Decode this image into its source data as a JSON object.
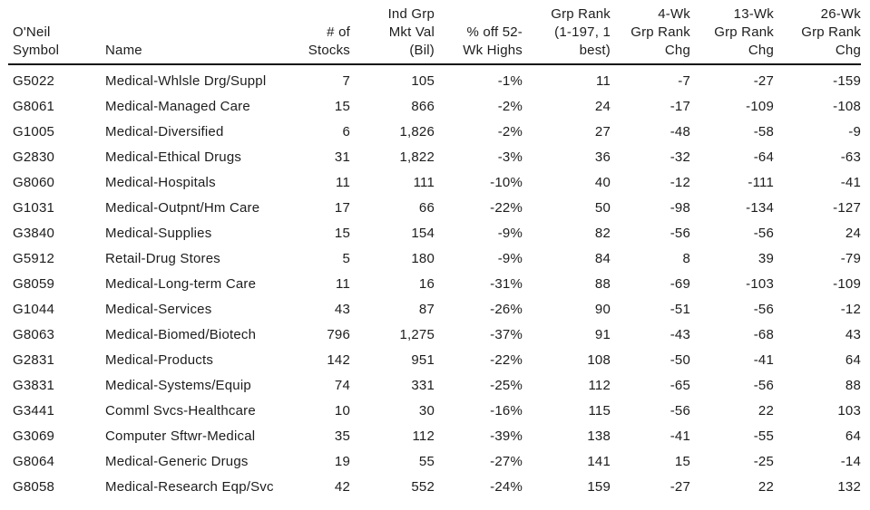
{
  "colors": {
    "background": "#ffffff",
    "text": "#1d1d1d",
    "header_rule": "#111111"
  },
  "table": {
    "headers": [
      {
        "id": "symbol",
        "label": [
          "O'Neil",
          "Symbol"
        ]
      },
      {
        "id": "name",
        "label": [
          "Name"
        ]
      },
      {
        "id": "stocks",
        "label": [
          "# of",
          "Stocks"
        ]
      },
      {
        "id": "mkt_val_bil",
        "label": [
          "Ind Grp",
          "Mkt Val",
          "(Bil)"
        ]
      },
      {
        "id": "pct_off_52wk",
        "label": [
          "% off 52-",
          "Wk Highs"
        ]
      },
      {
        "id": "grp_rank",
        "label": [
          "Grp Rank",
          "(1-197, 1",
          "best)"
        ]
      },
      {
        "id": "chg_4wk",
        "label": [
          "4-Wk",
          "Grp Rank",
          "Chg"
        ]
      },
      {
        "id": "chg_13wk",
        "label": [
          "13-Wk",
          "Grp Rank",
          "Chg"
        ]
      },
      {
        "id": "chg_26wk",
        "label": [
          "26-Wk",
          "Grp Rank",
          "Chg"
        ]
      }
    ],
    "rows": [
      {
        "symbol": "G5022",
        "name": "Medical-Whlsle Drg/Suppl",
        "stocks": "7",
        "mkt_val_bil": "105",
        "pct_off_52wk": "-1%",
        "grp_rank": "11",
        "chg_4wk": "-7",
        "chg_13wk": "-27",
        "chg_26wk": "-159"
      },
      {
        "symbol": "G8061",
        "name": "Medical-Managed Care",
        "stocks": "15",
        "mkt_val_bil": "866",
        "pct_off_52wk": "-2%",
        "grp_rank": "24",
        "chg_4wk": "-17",
        "chg_13wk": "-109",
        "chg_26wk": "-108"
      },
      {
        "symbol": "G1005",
        "name": "Medical-Diversified",
        "stocks": "6",
        "mkt_val_bil": "1,826",
        "pct_off_52wk": "-2%",
        "grp_rank": "27",
        "chg_4wk": "-48",
        "chg_13wk": "-58",
        "chg_26wk": "-9"
      },
      {
        "symbol": "G2830",
        "name": "Medical-Ethical Drugs",
        "stocks": "31",
        "mkt_val_bil": "1,822",
        "pct_off_52wk": "-3%",
        "grp_rank": "36",
        "chg_4wk": "-32",
        "chg_13wk": "-64",
        "chg_26wk": "-63"
      },
      {
        "symbol": "G8060",
        "name": "Medical-Hospitals",
        "stocks": "11",
        "mkt_val_bil": "111",
        "pct_off_52wk": "-10%",
        "grp_rank": "40",
        "chg_4wk": "-12",
        "chg_13wk": "-111",
        "chg_26wk": "-41"
      },
      {
        "symbol": "G1031",
        "name": "Medical-Outpnt/Hm Care",
        "stocks": "17",
        "mkt_val_bil": "66",
        "pct_off_52wk": "-22%",
        "grp_rank": "50",
        "chg_4wk": "-98",
        "chg_13wk": "-134",
        "chg_26wk": "-127"
      },
      {
        "symbol": "G3840",
        "name": "Medical-Supplies",
        "stocks": "15",
        "mkt_val_bil": "154",
        "pct_off_52wk": "-9%",
        "grp_rank": "82",
        "chg_4wk": "-56",
        "chg_13wk": "-56",
        "chg_26wk": "24"
      },
      {
        "symbol": "G5912",
        "name": "Retail-Drug Stores",
        "stocks": "5",
        "mkt_val_bil": "180",
        "pct_off_52wk": "-9%",
        "grp_rank": "84",
        "chg_4wk": "8",
        "chg_13wk": "39",
        "chg_26wk": "-79"
      },
      {
        "symbol": "G8059",
        "name": "Medical-Long-term Care",
        "stocks": "11",
        "mkt_val_bil": "16",
        "pct_off_52wk": "-31%",
        "grp_rank": "88",
        "chg_4wk": "-69",
        "chg_13wk": "-103",
        "chg_26wk": "-109"
      },
      {
        "symbol": "G1044",
        "name": "Medical-Services",
        "stocks": "43",
        "mkt_val_bil": "87",
        "pct_off_52wk": "-26%",
        "grp_rank": "90",
        "chg_4wk": "-51",
        "chg_13wk": "-56",
        "chg_26wk": "-12"
      },
      {
        "symbol": "G8063",
        "name": "Medical-Biomed/Biotech",
        "stocks": "796",
        "mkt_val_bil": "1,275",
        "pct_off_52wk": "-37%",
        "grp_rank": "91",
        "chg_4wk": "-43",
        "chg_13wk": "-68",
        "chg_26wk": "43"
      },
      {
        "symbol": "G2831",
        "name": "Medical-Products",
        "stocks": "142",
        "mkt_val_bil": "951",
        "pct_off_52wk": "-22%",
        "grp_rank": "108",
        "chg_4wk": "-50",
        "chg_13wk": "-41",
        "chg_26wk": "64"
      },
      {
        "symbol": "G3831",
        "name": "Medical-Systems/Equip",
        "stocks": "74",
        "mkt_val_bil": "331",
        "pct_off_52wk": "-25%",
        "grp_rank": "112",
        "chg_4wk": "-65",
        "chg_13wk": "-56",
        "chg_26wk": "88"
      },
      {
        "symbol": "G3441",
        "name": "Comml Svcs-Healthcare",
        "stocks": "10",
        "mkt_val_bil": "30",
        "pct_off_52wk": "-16%",
        "grp_rank": "115",
        "chg_4wk": "-56",
        "chg_13wk": "22",
        "chg_26wk": "103"
      },
      {
        "symbol": "G3069",
        "name": "Computer Sftwr-Medical",
        "stocks": "35",
        "mkt_val_bil": "112",
        "pct_off_52wk": "-39%",
        "grp_rank": "138",
        "chg_4wk": "-41",
        "chg_13wk": "-55",
        "chg_26wk": "64"
      },
      {
        "symbol": "G8064",
        "name": "Medical-Generic Drugs",
        "stocks": "19",
        "mkt_val_bil": "55",
        "pct_off_52wk": "-27%",
        "grp_rank": "141",
        "chg_4wk": "15",
        "chg_13wk": "-25",
        "chg_26wk": "-14"
      },
      {
        "symbol": "G8058",
        "name": "Medical-Research Eqp/Svc",
        "stocks": "42",
        "mkt_val_bil": "552",
        "pct_off_52wk": "-24%",
        "grp_rank": "159",
        "chg_4wk": "-27",
        "chg_13wk": "22",
        "chg_26wk": "132"
      }
    ]
  }
}
